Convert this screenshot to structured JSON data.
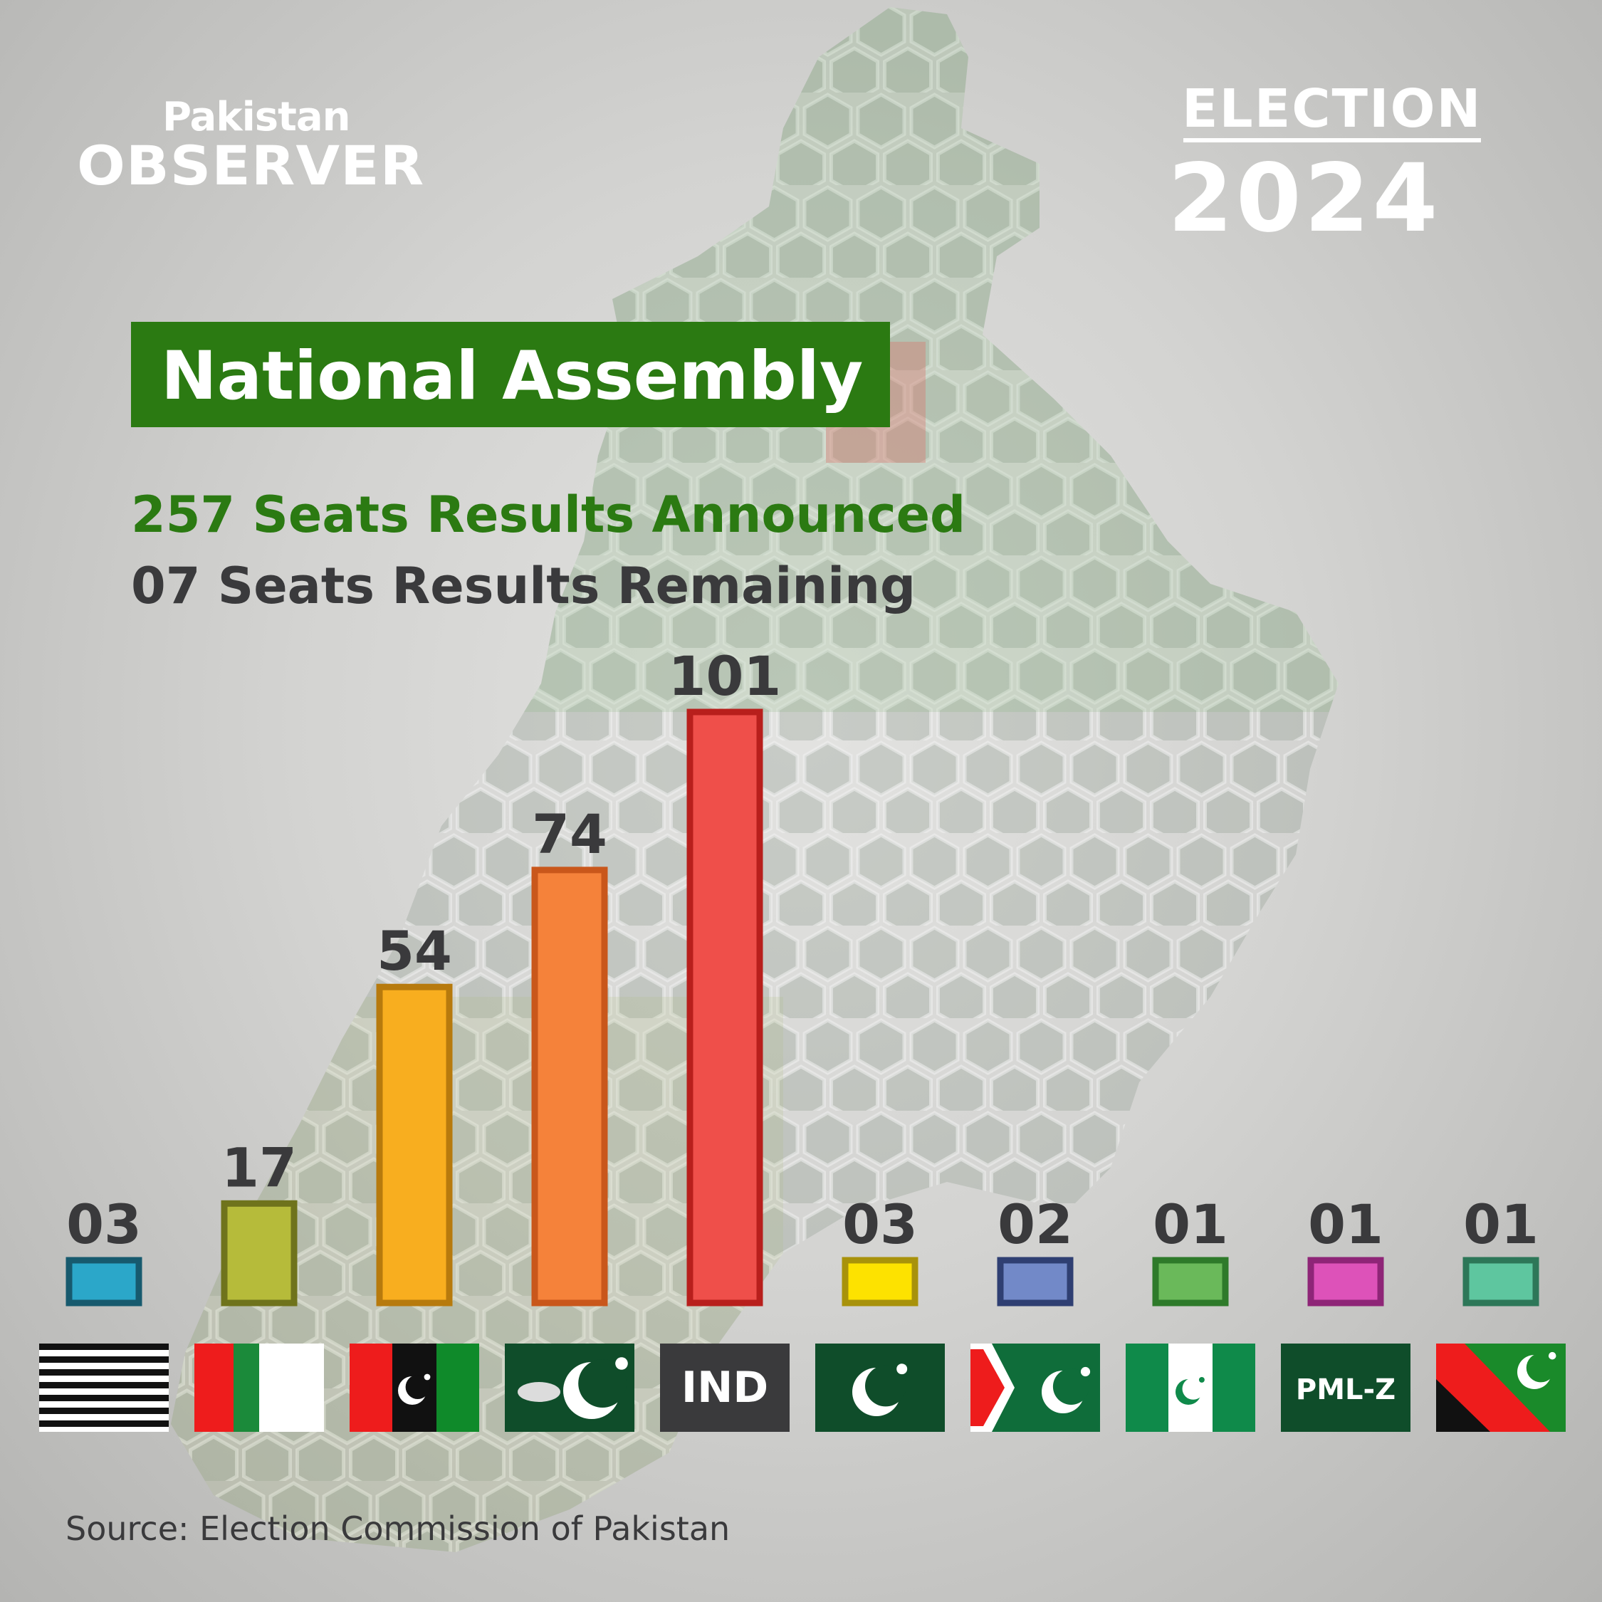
{
  "header": {
    "brand_top": "Pakistan",
    "brand_bottom": "OBSERVER",
    "event_word": "ELECTION",
    "event_year": "2024"
  },
  "title": "National Assembly",
  "subtitle_announced": "257 Seats Results Announced",
  "subtitle_remaining": "07 Seats Results  Remaining",
  "source": "Source: Election Commission of Pakistan",
  "chart_data": {
    "type": "bar",
    "title": "National Assembly",
    "xlabel": "",
    "ylabel": "",
    "ylim": [
      0,
      101
    ],
    "grid": false,
    "categories": [
      "",
      "",
      "",
      "",
      "IND",
      "",
      "",
      "",
      "PML-Z",
      ""
    ],
    "values": [
      3,
      17,
      54,
      74,
      101,
      3,
      2,
      1,
      1,
      1
    ],
    "value_labels": [
      "03",
      "17",
      "54",
      "74",
      "101",
      "03",
      "02",
      "01",
      "01",
      "01"
    ],
    "bar_colors": [
      "#2ba7c9",
      "#b6bb3a",
      "#f8ae1f",
      "#f5823a",
      "#ef4f4a",
      "#fde200",
      "#7289c8",
      "#6ab95a",
      "#dd52b9",
      "#5ec69f"
    ],
    "bar_borders": [
      "#175a6e",
      "#6f731c",
      "#b77a0d",
      "#c9571b",
      "#b81f1c",
      "#a8920b",
      "#2f3f72",
      "#2e7a2a",
      "#8e2577",
      "#2d7758"
    ],
    "flags": [
      "stripes-black-white",
      "red-green-white",
      "red-black-green-crescent",
      "green-tiger-crescent",
      "ind-label",
      "green-crescent",
      "red-chevron-crescent",
      "green-white-green-crescent",
      "pmlz-label",
      "diagonal-red-black-green-crescent"
    ]
  }
}
